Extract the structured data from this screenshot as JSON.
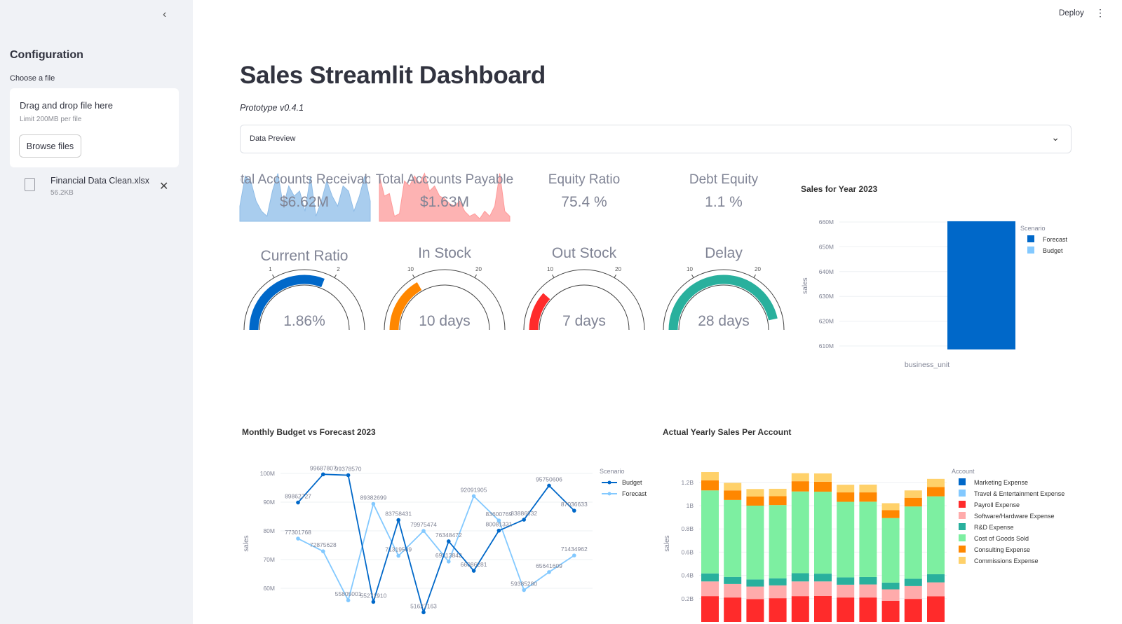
{
  "sidebar": {
    "title": "Configuration",
    "file_label": "Choose a file",
    "dropzone": "Drag and drop file here",
    "limit": "Limit 200MB per file",
    "browse": "Browse files",
    "file": {
      "name": "Financial Data Clean.xlsx",
      "size": "56.2KB"
    }
  },
  "header": {
    "deploy": "Deploy"
  },
  "main": {
    "title": "Sales Streamlit Dashboard",
    "subtitle": "Prototype v0.4.1",
    "expander": "Data Preview"
  },
  "kpis": [
    {
      "label": "Total Accounts Receivable",
      "shown_label": "otal Accounts Receivab",
      "value": "$6.62M",
      "color": "#a9cdee"
    },
    {
      "label": "Total Accounts Payable",
      "shown_label": "Total Accounts Payable",
      "value": "$1.63M",
      "color": "#fdb3b3"
    },
    {
      "label": "Equity Ratio",
      "value": "75.4 %"
    },
    {
      "label": "Debt Equity",
      "value": "1.1 %"
    }
  ],
  "gauges": [
    {
      "label": "Current Ratio",
      "value": 1.86,
      "display": "1.86%",
      "range": [
        0,
        3
      ],
      "ticks": [
        "1",
        "2"
      ],
      "color": "#0068c9"
    },
    {
      "label": "In Stock",
      "value": 10,
      "display": "10 days",
      "range": [
        0,
        30
      ],
      "ticks": [
        "10",
        "20"
      ],
      "color": "#ff8700"
    },
    {
      "label": "Out Stock",
      "value": 7,
      "display": "7 days",
      "range": [
        0,
        30
      ],
      "ticks": [
        "10",
        "20"
      ],
      "color": "#ff2b2b"
    },
    {
      "label": "Delay",
      "value": 28,
      "display": "28 days",
      "range": [
        0,
        30
      ],
      "ticks": [
        "10",
        "20"
      ],
      "color": "#29b09d"
    }
  ],
  "chart_data": [
    {
      "type": "bar",
      "title": "Sales for Year 2023",
      "xlabel": "business_unit",
      "ylabel": "sales",
      "ylim": [
        608500000,
        662000000
      ],
      "yticks": [
        "610M",
        "620M",
        "630M",
        "640M",
        "650M",
        "660M"
      ],
      "legend_title": "Scenario",
      "legend_position": "right",
      "series": [
        {
          "name": "Forecast",
          "color": "#0068c9",
          "values": [
            660300000
          ]
        },
        {
          "name": "Budget",
          "color": "#83c9ff",
          "values": []
        }
      ]
    },
    {
      "type": "line",
      "title": "Monthly Budget vs Forecast 2023",
      "ylabel": "sales",
      "yticks": [
        "60M",
        "70M",
        "80M",
        "90M",
        "100M"
      ],
      "legend_title": "Scenario",
      "legend_position": "right",
      "series": [
        {
          "name": "Budget",
          "color": "#0068c9",
          "values": [
            89862727,
            99687807,
            99378570,
            55271910,
            83758431,
            51627163,
            76348472,
            66086281,
            80081331,
            83886832,
            95750606,
            87036633
          ]
        },
        {
          "name": "Forecast",
          "color": "#83c9ff",
          "values": [
            77301768,
            72875628,
            55805001,
            89382699,
            71319509,
            79975474,
            69313842,
            92091905,
            83600769,
            59385280,
            65641609,
            71434962
          ]
        }
      ]
    },
    {
      "type": "bar",
      "stacked": true,
      "title": "Actual Yearly Sales Per Account",
      "ylabel": "sales",
      "yticks": [
        "0.2B",
        "0.4B",
        "0.6B",
        "0.8B",
        "1B",
        "1.2B"
      ],
      "legend_title": "Account",
      "legend_position": "right",
      "series": [
        {
          "name": "Marketing Expense",
          "color": "#0068c9",
          "values": []
        },
        {
          "name": "Travel & Entertainment Expense",
          "color": "#83c9ff",
          "values": []
        },
        {
          "name": "Payroll Expense",
          "color": "#ff2b2b",
          "values": [
            0.222,
            0.21,
            0.196,
            0.204,
            0.222,
            0.224,
            0.21,
            0.21,
            0.182,
            0.198,
            0.22
          ]
        },
        {
          "name": "Software/Hardware Expense",
          "color": "#ffabab",
          "values": [
            0.126,
            0.116,
            0.108,
            0.11,
            0.126,
            0.124,
            0.11,
            0.112,
            0.098,
            0.11,
            0.12
          ]
        },
        {
          "name": "R&D Expense",
          "color": "#29b09d",
          "values": [
            0.069,
            0.061,
            0.061,
            0.061,
            0.071,
            0.067,
            0.063,
            0.064,
            0.058,
            0.063,
            0.07
          ]
        },
        {
          "name": "Cost of Goods Sold",
          "color": "#7defa1",
          "values": [
            0.714,
            0.662,
            0.635,
            0.63,
            0.703,
            0.705,
            0.65,
            0.648,
            0.555,
            0.622,
            0.67
          ]
        },
        {
          "name": "Consulting Expense",
          "color": "#ff8700",
          "values": [
            0.087,
            0.082,
            0.079,
            0.077,
            0.088,
            0.086,
            0.081,
            0.08,
            0.069,
            0.075,
            0.08
          ]
        },
        {
          "name": "Commissions Expense",
          "color": "#ffd16a",
          "values": [
            0.071,
            0.065,
            0.064,
            0.063,
            0.069,
            0.071,
            0.066,
            0.067,
            0.059,
            0.063,
            0.07
          ]
        }
      ]
    }
  ]
}
